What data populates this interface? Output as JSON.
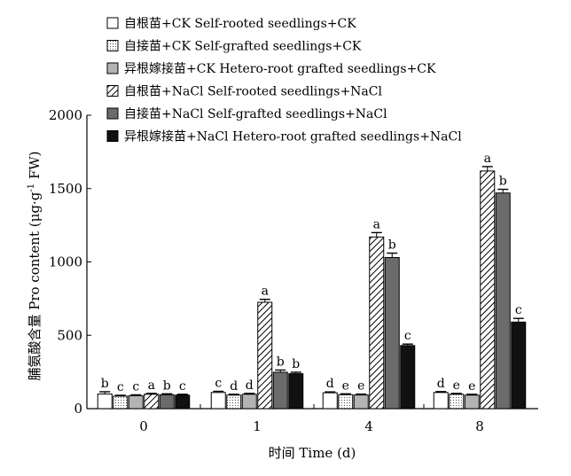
{
  "chart_data": {
    "type": "bar",
    "categories": [
      "0",
      "1",
      "4",
      "8"
    ],
    "xlabel": "时间 Time (d)",
    "ylabel_main": "脯氨酸含量 Pro content (μg·g",
    "ylabel_sup": "-1",
    "ylabel_tail": " FW)",
    "ylim": [
      0,
      2000
    ],
    "yticks": [
      0,
      500,
      1000,
      1500,
      2000
    ],
    "legend_position": "top-left",
    "series": [
      {
        "name": "自根苗+CK  Self-rooted seedlings+CK",
        "pattern": "white",
        "values": [
          100,
          110,
          108,
          110
        ],
        "errors": [
          15,
          8,
          6,
          6
        ],
        "letters": [
          "b",
          "c",
          "d",
          "d"
        ]
      },
      {
        "name": "自接苗+CK  Self-grafted seedlings+CK",
        "pattern": "dots",
        "values": [
          85,
          92,
          95,
          98
        ],
        "errors": [
          6,
          6,
          6,
          6
        ],
        "letters": [
          "c",
          "d",
          "e",
          "e"
        ]
      },
      {
        "name": "异根嫁接苗+CK  Hetero-root grafted seedlings+CK",
        "pattern": "lightgray",
        "values": [
          88,
          98,
          93,
          92
        ],
        "errors": [
          6,
          6,
          6,
          6
        ],
        "letters": [
          "c",
          "d",
          "e",
          "e"
        ]
      },
      {
        "name": "自根苗+NaCl  Self-rooted seedlings+NaCl",
        "pattern": "hatch",
        "values": [
          98,
          725,
          1170,
          1620
        ],
        "errors": [
          6,
          20,
          30,
          30
        ],
        "letters": [
          "a",
          "a",
          "a",
          "a"
        ]
      },
      {
        "name": "自接苗+NaCl  Self-grafted seedlings+NaCl",
        "pattern": "darkgray",
        "values": [
          95,
          248,
          1030,
          1470
        ],
        "errors": [
          6,
          15,
          30,
          25
        ],
        "letters": [
          "b",
          "b",
          "b",
          "b"
        ]
      },
      {
        "name": "异根嫁接苗+NaCl  Hetero-root grafted seedlings+NaCl",
        "pattern": "black",
        "values": [
          92,
          238,
          430,
          590
        ],
        "errors": [
          6,
          10,
          10,
          25
        ],
        "letters": [
          "c",
          "b",
          "c",
          "c"
        ]
      }
    ]
  }
}
